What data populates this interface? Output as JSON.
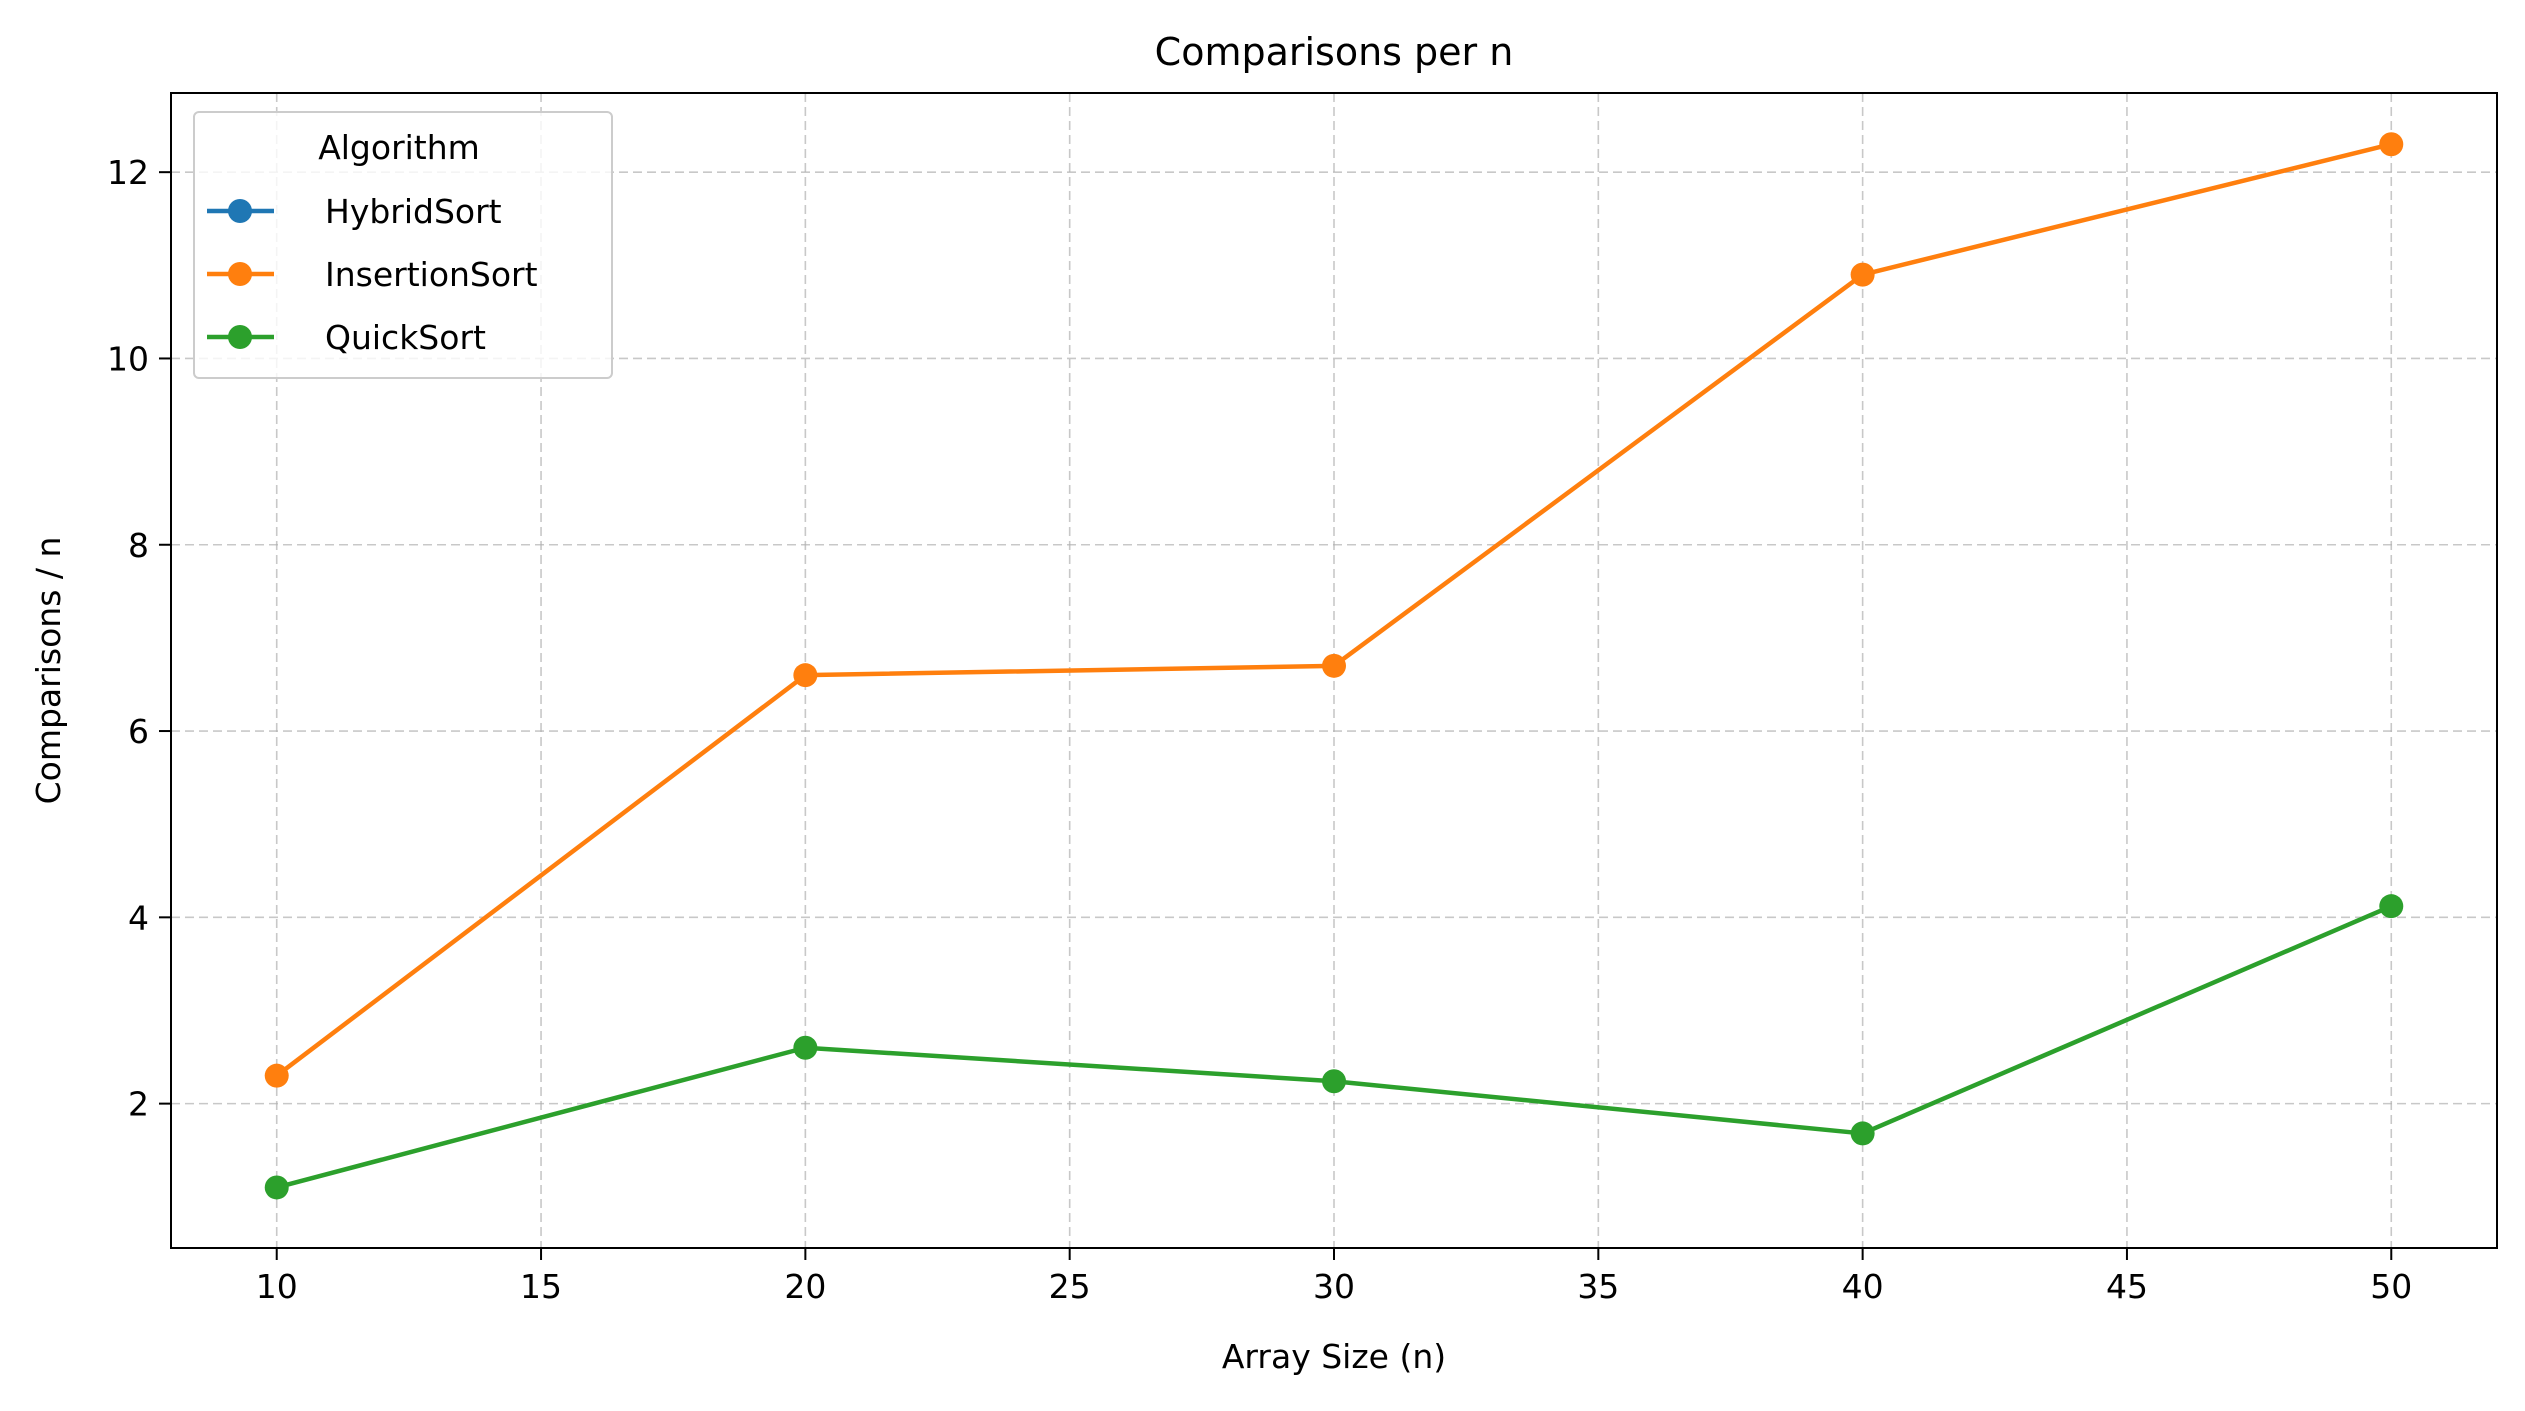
{
  "chart_data": {
    "type": "line",
    "title": "Comparisons per n",
    "xlabel": "Array Size (n)",
    "ylabel": "Comparisons / n",
    "x": [
      10,
      20,
      30,
      40,
      50
    ],
    "xlim": [
      8,
      52
    ],
    "ylim": [
      0.45,
      12.85
    ],
    "xticks": [
      10,
      15,
      20,
      25,
      30,
      35,
      40,
      45,
      50
    ],
    "yticks": [
      2,
      4,
      6,
      8,
      10,
      12
    ],
    "grid": true,
    "grid_style": "dashed",
    "legend": {
      "title": "Algorithm",
      "placement": "top-left"
    },
    "series": [
      {
        "name": "HybridSort",
        "color": "#1f77b4",
        "marker": "circle",
        "values": [
          null,
          null,
          null,
          null,
          null
        ]
      },
      {
        "name": "InsertionSort",
        "color": "#ff7f0e",
        "marker": "circle",
        "values": [
          2.3,
          6.6,
          6.7,
          10.9,
          12.3
        ]
      },
      {
        "name": "QuickSort",
        "color": "#2ca02c",
        "marker": "circle",
        "values": [
          1.1,
          2.6,
          2.24,
          1.68,
          4.12
        ]
      }
    ]
  }
}
